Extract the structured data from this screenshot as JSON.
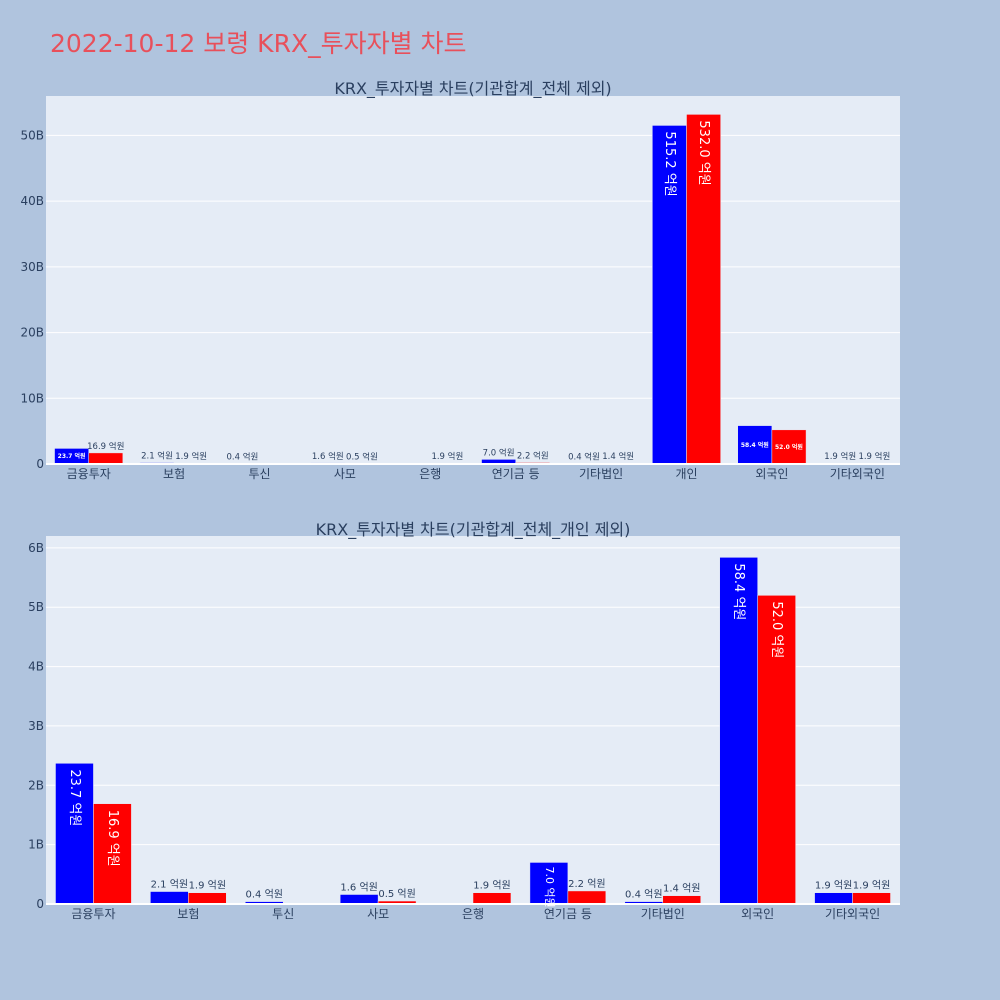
{
  "page": {
    "title": "2022-10-12 보령 KRX_투자자별 차트"
  },
  "colors": {
    "series_a": "#0000ff",
    "series_b": "#ff0000",
    "plot_bg": "#e5ecf6",
    "page_bg": "#b0c4de"
  },
  "chart_data": [
    {
      "type": "bar",
      "title": "KRX_투자자별 차트(기관합계_전체 제외)",
      "categories": [
        "금융투자",
        "보험",
        "투신",
        "사모",
        "은행",
        "연기금 등",
        "기타법인",
        "개인",
        "외국인",
        "기타외국인"
      ],
      "ylim": [
        0,
        56
      ],
      "yticks": [
        0,
        10,
        20,
        30,
        40,
        50
      ],
      "ytick_labels": [
        "0",
        "10B",
        "20B",
        "30B",
        "40B",
        "50B"
      ],
      "series": [
        {
          "values": [
            2.37,
            0.21,
            0.04,
            0.16,
            null,
            0.7,
            0.04,
            51.52,
            5.84,
            0.19
          ],
          "labels": [
            "23.7 억원",
            "2.1 억원",
            "0.4 억원",
            "1.6 억원",
            "",
            "7.0 억원",
            "0.4 억원",
            "515.2 억원",
            "58.4 억원",
            "1.9 억원"
          ]
        },
        {
          "values": [
            1.69,
            0.19,
            null,
            0.05,
            0.19,
            0.22,
            0.14,
            53.2,
            5.2,
            0.19
          ],
          "labels": [
            "16.9 억원",
            "1.9 억원",
            "",
            "0.5 억원",
            "1.9 억원",
            "2.2 억원",
            "1.4 억원",
            "532.0 억원",
            "52.0 억원",
            "1.9 억원"
          ]
        }
      ],
      "grid": true
    },
    {
      "type": "bar",
      "title": "KRX_투자자별 차트(기관합계_전체_개인 제외)",
      "categories": [
        "금융투자",
        "보험",
        "투신",
        "사모",
        "은행",
        "연기금 등",
        "기타법인",
        "외국인",
        "기타외국인"
      ],
      "ylim": [
        0,
        6.2
      ],
      "yticks": [
        0,
        1,
        2,
        3,
        4,
        5,
        6
      ],
      "ytick_labels": [
        "0",
        "1B",
        "2B",
        "3B",
        "4B",
        "5B",
        "6B"
      ],
      "series": [
        {
          "values": [
            2.37,
            0.21,
            0.04,
            0.16,
            null,
            0.7,
            0.04,
            5.84,
            0.19
          ],
          "labels": [
            "23.7 억원",
            "2.1 억원",
            "0.4 억원",
            "1.6 억원",
            "",
            "7.0 억원",
            "0.4 억원",
            "58.4 억원",
            "1.9 억원"
          ]
        },
        {
          "values": [
            1.69,
            0.19,
            null,
            0.05,
            0.19,
            0.22,
            0.14,
            5.2,
            0.19
          ],
          "labels": [
            "16.9 억원",
            "1.9 억원",
            "",
            "0.5 억원",
            "1.9 억원",
            "2.2 억원",
            "1.4 억원",
            "52.0 억원",
            "1.9 억원"
          ]
        }
      ],
      "grid": true
    }
  ]
}
